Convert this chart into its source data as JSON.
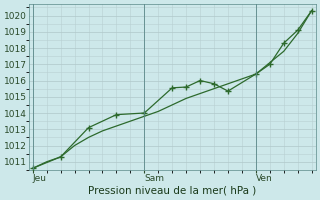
{
  "xlabel": "Pression niveau de la mer( hPa )",
  "bg_color": "#cde8ea",
  "grid_color_major": "#c8d8d8",
  "grid_color_minor": "#ddeaea",
  "line_color": "#2d6a2d",
  "ylim": [
    1010.5,
    1020.7
  ],
  "yticks": [
    1011,
    1012,
    1013,
    1014,
    1015,
    1016,
    1017,
    1018,
    1019,
    1020
  ],
  "xtick_labels": [
    "Jeu",
    "Sam",
    "Ven"
  ],
  "xtick_positions": [
    0,
    8,
    16
  ],
  "vline_positions": [
    0,
    8,
    16
  ],
  "series1_x": [
    0,
    1,
    2,
    3,
    4,
    5,
    6,
    7,
    8,
    9,
    10,
    11,
    12,
    13,
    14,
    15,
    16,
    17,
    18,
    19,
    20
  ],
  "series1_y": [
    1010.6,
    1011.0,
    1011.3,
    1012.0,
    1012.5,
    1012.9,
    1013.2,
    1013.5,
    1013.8,
    1014.1,
    1014.5,
    1014.9,
    1015.2,
    1015.5,
    1015.8,
    1016.1,
    1016.4,
    1017.1,
    1017.8,
    1018.9,
    1020.3
  ],
  "series2_x": [
    0,
    2,
    4,
    6,
    8,
    10,
    11,
    12,
    13,
    14,
    16,
    17,
    18,
    19,
    20
  ],
  "series2_y": [
    1010.6,
    1011.3,
    1013.1,
    1013.9,
    1014.0,
    1015.55,
    1015.6,
    1016.0,
    1015.8,
    1015.35,
    1016.4,
    1017.0,
    1018.3,
    1019.1,
    1020.3
  ],
  "marker": "+",
  "marker_size": 4,
  "linewidth": 0.9,
  "font_size_tick": 6.5,
  "font_size_label": 7.5,
  "xlim": [
    -0.3,
    20.3
  ]
}
